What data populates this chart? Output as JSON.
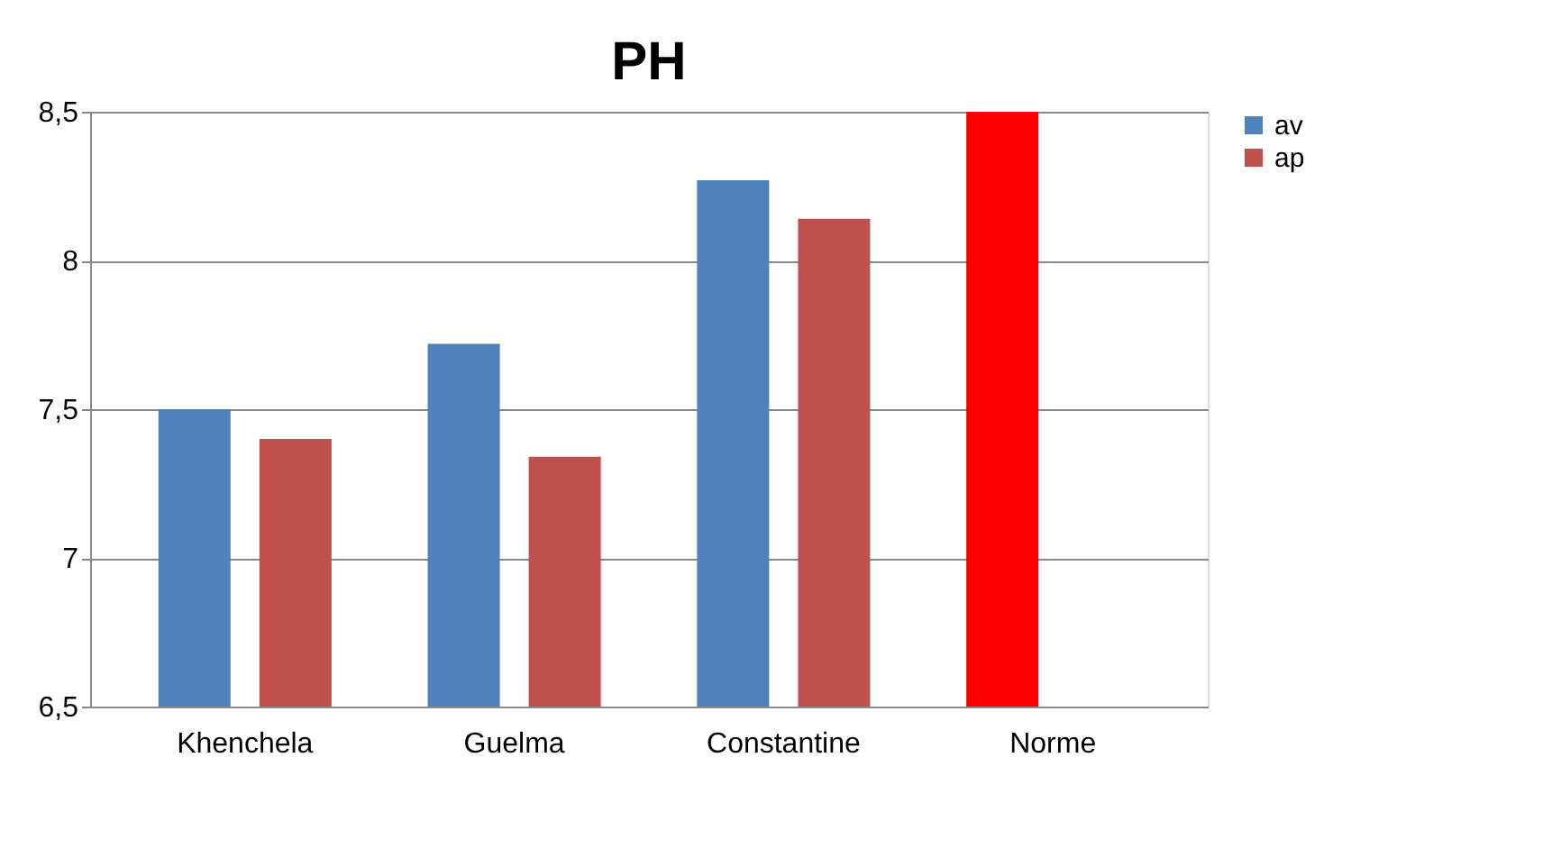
{
  "chart_data": {
    "type": "bar",
    "title": "PH",
    "categories": [
      "Khenchela",
      "Guelma",
      "Constantine",
      "Norme"
    ],
    "series": [
      {
        "name": "av",
        "color": "#4f81bd",
        "colors": [
          "#4f81bd",
          "#4f81bd",
          "#4f81bd",
          "#ff0000"
        ],
        "values": [
          7.5,
          7.72,
          8.27,
          8.5
        ]
      },
      {
        "name": "ap",
        "color": "#c0504d",
        "values": [
          7.4,
          7.34,
          8.14,
          null
        ]
      }
    ],
    "ylim": [
      6.5,
      8.5
    ],
    "yticks": [
      {
        "value": 6.5,
        "label": "6,5"
      },
      7,
      {
        "value": 7.5,
        "label": "7,5"
      },
      8,
      {
        "value": 8.5,
        "label": "8,5"
      }
    ],
    "grid": "y",
    "legend": "right"
  }
}
